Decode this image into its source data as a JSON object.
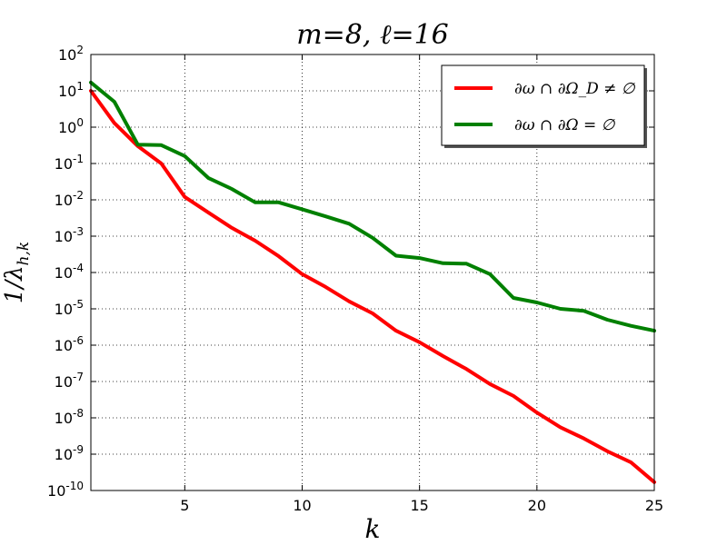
{
  "chart_data": {
    "type": "line",
    "title": "m=8, ℓ=16",
    "xlabel": "k",
    "ylabel": "1/λ_{h,k}",
    "xlim": [
      1,
      25
    ],
    "ylim_exponents": [
      -10,
      2
    ],
    "yscale": "log",
    "grid": true,
    "legend_position": "top-right",
    "x_ticks": [
      5,
      10,
      15,
      20,
      25
    ],
    "y_tick_base": "10",
    "y_tick_exponents": [
      "2",
      "1",
      "0",
      "-1",
      "-2",
      "-3",
      "-4",
      "-5",
      "-6",
      "-7",
      "-8",
      "-9",
      "-10"
    ],
    "x": [
      1,
      2,
      3,
      4,
      5,
      6,
      7,
      8,
      9,
      10,
      11,
      12,
      13,
      14,
      15,
      16,
      17,
      18,
      19,
      20,
      21,
      22,
      23,
      24,
      25
    ],
    "series": [
      {
        "name": "∂ω ∩ ∂Ω_D ≠ ∅",
        "color": "#ff0000",
        "values": [
          10,
          1.3,
          0.3,
          0.1,
          0.012,
          0.0045,
          0.0017,
          0.00075,
          0.00028,
          9e-05,
          4e-05,
          1.6e-05,
          7.5e-06,
          2.5e-06,
          1.2e-06,
          5e-07,
          2.2e-07,
          8.5e-08,
          4e-08,
          1.4e-08,
          5.5e-09,
          2.7e-09,
          1.2e-09,
          6e-10,
          1.7e-10
        ]
      },
      {
        "name": "∂ω ∩ ∂Ω = ∅",
        "color": "#008000",
        "values": [
          17,
          5,
          0.33,
          0.32,
          0.16,
          0.04,
          0.02,
          0.0085,
          0.0085,
          0.0055,
          0.0035,
          0.0022,
          0.0009,
          0.00029,
          0.00025,
          0.00018,
          0.000175,
          9e-05,
          2e-05,
          1.5e-05,
          1e-05,
          8.8e-06,
          5e-06,
          3.4e-06,
          2.5e-06
        ]
      }
    ]
  }
}
